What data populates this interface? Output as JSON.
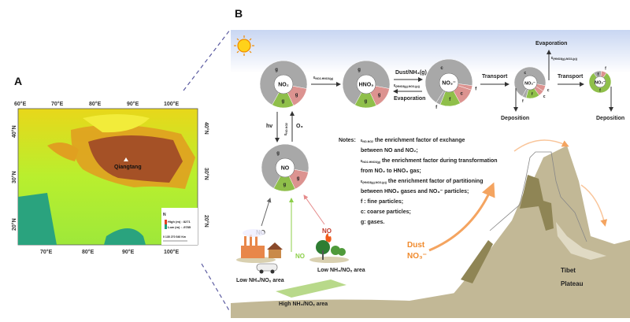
{
  "panel_a": {
    "label": "A",
    "lon_ticks_top": [
      "60°E",
      "70°E",
      "80°E",
      "90°E",
      "100°E"
    ],
    "lon_ticks_bottom": [
      "70°E",
      "80°E",
      "90°E",
      "100°E"
    ],
    "lat_ticks": [
      "40°N",
      "30°N",
      "20°N"
    ],
    "site": "Qiangtang",
    "legend": {
      "high": "High (m) : 8271",
      "low": "Low (m) : -9785",
      "scale": "0  135 270      540 Km",
      "north": "N"
    },
    "colors": {
      "low": "#1f9e7a",
      "mid": "#b6f02a",
      "high_mid": "#f6e318",
      "high": "#a55126"
    }
  },
  "panel_b": {
    "label": "B",
    "pools": [
      {
        "species": "NO₂",
        "segments": [
          {
            "type": "g",
            "frac": 0.7,
            "color": "#a8a8a8"
          },
          {
            "type": "g",
            "frac": 0.15,
            "color": "#dc9390"
          },
          {
            "type": "g",
            "frac": 0.15,
            "color": "#8fbf4a"
          }
        ]
      },
      {
        "species": "HNO₃",
        "segments": [
          {
            "type": "g",
            "frac": 0.7,
            "color": "#a8a8a8"
          },
          {
            "type": "g",
            "frac": 0.15,
            "color": "#dc9390"
          },
          {
            "type": "g",
            "frac": 0.15,
            "color": "#8fbf4a"
          }
        ]
      },
      {
        "species": "NO₃⁻",
        "segments": [
          {
            "type": "c",
            "frac": 0.62,
            "color": "#a8a8a8"
          },
          {
            "type": "f",
            "frac": 0.03,
            "color": "#dc9390"
          },
          {
            "type": "c",
            "frac": 0.12,
            "color": "#dc9390"
          },
          {
            "type": "f",
            "frac": 0.14,
            "color": "#8fbf4a"
          },
          {
            "type": "f",
            "frac": 0.03,
            "color": "#a8a8a8"
          }
        ]
      },
      {
        "species": "NO₃⁻",
        "segments": [
          {
            "type": "c",
            "frac": 0.62,
            "color": "#a8a8a8"
          },
          {
            "type": "c",
            "frac": 0.06,
            "color": "#dc9390"
          },
          {
            "type": "c",
            "frac": 0.06,
            "color": "#dc9390"
          },
          {
            "type": "f",
            "frac": 0.14,
            "color": "#8fbf4a"
          },
          {
            "type": "f",
            "frac": 0.04,
            "color": "#a8a8a8"
          }
        ]
      },
      {
        "species": "NO₃⁻",
        "segments": [
          {
            "type": "f",
            "frac": 0.12,
            "color": "#a8a8a8"
          },
          {
            "type": "f",
            "frac": 0.08,
            "color": "#dc9390"
          },
          {
            "type": "f",
            "frac": 0.8,
            "color": "#8fbf4a"
          }
        ]
      },
      {
        "species": "NO",
        "segments": [
          {
            "type": "g",
            "frac": 0.7,
            "color": "#a8a8a8"
          },
          {
            "type": "g",
            "frac": 0.15,
            "color": "#dc9390"
          },
          {
            "type": "g",
            "frac": 0.15,
            "color": "#8fbf4a"
          }
        ]
      }
    ],
    "arrows": {
      "eps_symbol": "ε",
      "eps_no2_hno3": "NO2-HNO3(g)",
      "dust_nh3": "Dust/NH₃(g)",
      "eps_hno3_no3": "(HNO3(g)-NO3-(p))",
      "evaporation": "Evaporation",
      "transport": "Transport",
      "deposition": "Deposition",
      "hv": "hv",
      "eps_no_no2": "NO-NO2",
      "o3": "O₃"
    },
    "notes": {
      "title": "Notes:",
      "lines": [
        "the enrichment factor of  exchange",
        "between NO and NO₂;",
        "the enrichment factor during transformation",
        " from NO₂ to HNO₃ gas;",
        "the enrichment factor of partitioning",
        "between HNO₃ gases and NO₃⁻ particles;",
        "f : fine particles;",
        "c: coarse particles;",
        "g: gases."
      ],
      "eps_subs": [
        "NO-NO2",
        "NO2-HNO3(g)",
        "(HNO3(g)-NO3-(p))"
      ]
    },
    "sources": {
      "no": "NO",
      "area_low_1": "Low NH₃/NOₓ area",
      "area_low_2": "Low NH₃/NOₓ area",
      "area_high": "High NH₃/NOₓ area"
    },
    "dust": {
      "line1": "Dust",
      "line2": "NO₃⁻"
    },
    "plateau": {
      "line1": "Tibet",
      "line2": "Plateau"
    },
    "colors": {
      "arrow_orange": "#f4a460",
      "text_orange": "#f08a2c",
      "mountain": "#c2b896",
      "mountain_dark": "#8f8555",
      "ground": "#b5a77a",
      "source_red": "#c0392b",
      "source_green": "#8ccf4a"
    }
  }
}
